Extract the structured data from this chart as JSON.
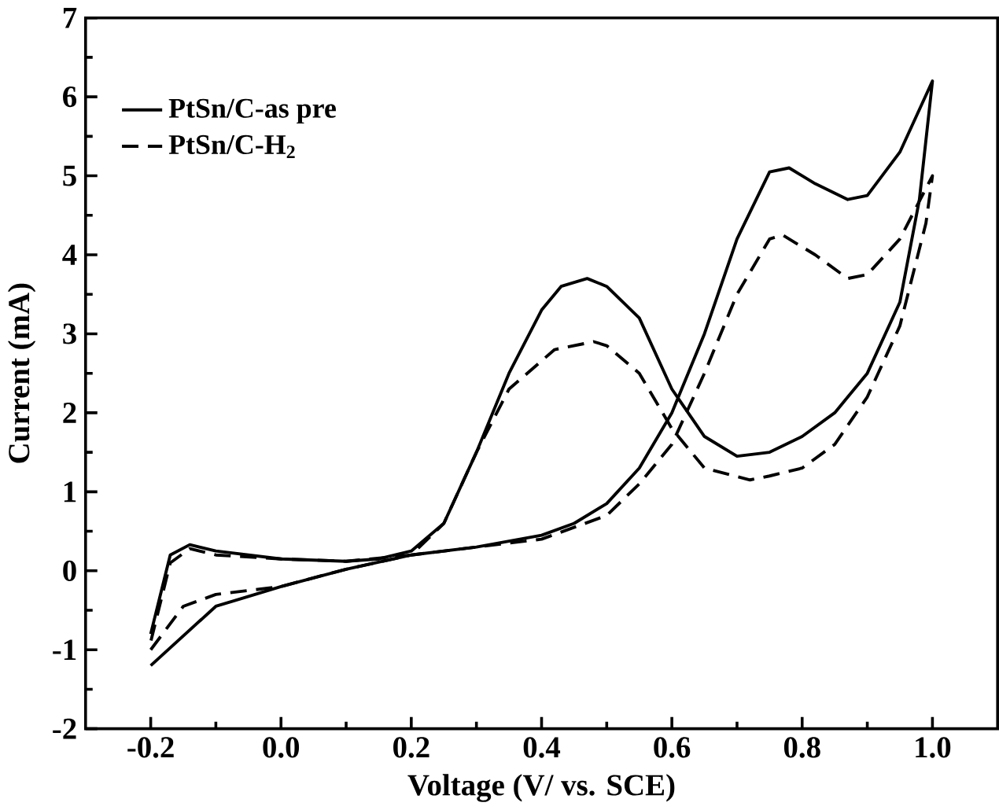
{
  "chart_data": {
    "type": "line",
    "xlabel": "Voltage (V/ vs. SCE)",
    "ylabel": "Current (mA)",
    "xlim": [
      -0.3,
      1.1
    ],
    "ylim": [
      -2,
      7
    ],
    "xticks": [
      {
        "value": -0.2,
        "label": "-0.2"
      },
      {
        "value": 0.0,
        "label": "0.0"
      },
      {
        "value": 0.2,
        "label": "0.2"
      },
      {
        "value": 0.4,
        "label": "0.4"
      },
      {
        "value": 0.6,
        "label": "0.6"
      },
      {
        "value": 0.8,
        "label": "0.8"
      },
      {
        "value": 1.0,
        "label": "1.0"
      }
    ],
    "yticks": [
      -2,
      -1,
      0,
      1,
      2,
      3,
      4,
      5,
      6,
      7
    ],
    "legend": "top left",
    "marker": "none",
    "grid": false,
    "series": [
      {
        "name": "PtSn/C-as pre",
        "color": "#000000",
        "line_style": "solid",
        "x": [
          -0.2,
          -0.1,
          0.0,
          0.1,
          0.2,
          0.3,
          0.4,
          0.45,
          0.5,
          0.55,
          0.6,
          0.65,
          0.7,
          0.75,
          0.78,
          0.82,
          0.87,
          0.9,
          0.95,
          1.0,
          0.98,
          0.95,
          0.9,
          0.85,
          0.8,
          0.75,
          0.7,
          0.65,
          0.6,
          0.55,
          0.5,
          0.47,
          0.43,
          0.4,
          0.35,
          0.3,
          0.25,
          0.2,
          0.15,
          0.1,
          0.0,
          -0.1,
          -0.14,
          -0.17,
          -0.2
        ],
        "values": [
          -1.2,
          -0.45,
          -0.2,
          0.02,
          0.2,
          0.3,
          0.45,
          0.6,
          0.85,
          1.3,
          2.0,
          3.0,
          4.2,
          5.05,
          5.1,
          4.9,
          4.7,
          4.75,
          5.3,
          6.2,
          4.7,
          3.4,
          2.5,
          2.0,
          1.7,
          1.5,
          1.45,
          1.7,
          2.3,
          3.2,
          3.6,
          3.7,
          3.6,
          3.3,
          2.5,
          1.5,
          0.6,
          0.25,
          0.15,
          0.12,
          0.15,
          0.25,
          0.33,
          0.2,
          -0.8
        ]
      },
      {
        "name": "PtSn/C-H$_{2}$",
        "color": "#000000",
        "line_style": "dashed",
        "x": [
          -0.2,
          -0.15,
          -0.1,
          0.0,
          0.1,
          0.2,
          0.3,
          0.4,
          0.5,
          0.55,
          0.6,
          0.65,
          0.7,
          0.75,
          0.77,
          0.82,
          0.87,
          0.9,
          0.95,
          1.0,
          0.99,
          0.95,
          0.9,
          0.85,
          0.8,
          0.75,
          0.72,
          0.65,
          0.6,
          0.55,
          0.5,
          0.48,
          0.42,
          0.35,
          0.3,
          0.25,
          0.2,
          0.1,
          0.0,
          -0.1,
          -0.14,
          -0.17,
          -0.2
        ],
        "values": [
          -1.0,
          -0.45,
          -0.3,
          -0.2,
          0.02,
          0.2,
          0.3,
          0.4,
          0.7,
          1.1,
          1.6,
          2.5,
          3.5,
          4.2,
          4.25,
          4.0,
          3.7,
          3.75,
          4.2,
          5.0,
          4.4,
          3.1,
          2.2,
          1.6,
          1.3,
          1.2,
          1.15,
          1.3,
          1.8,
          2.5,
          2.85,
          2.9,
          2.8,
          2.3,
          1.5,
          0.6,
          0.2,
          0.12,
          0.15,
          0.2,
          0.28,
          0.1,
          -0.9
        ]
      }
    ]
  }
}
